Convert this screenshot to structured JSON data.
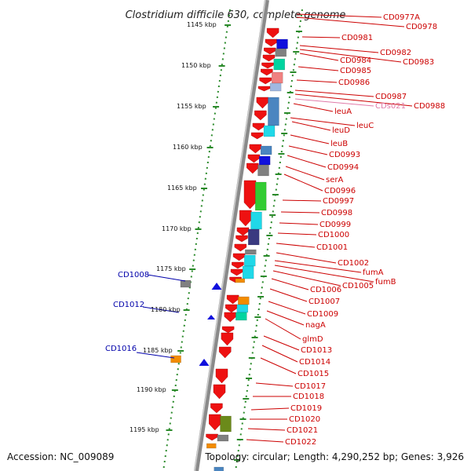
{
  "title": "Clostridium difficile 630, complete genome",
  "footer": {
    "accession": "Accession: NC_009089",
    "summary": "Topology: circular; Length: 4,290,252 bp; Genes: 3,926"
  },
  "colors": {
    "backbone": "#8a8a8a",
    "tick": "#2a8a2a",
    "right_label": "#cc0000",
    "left_label": "#0000aa",
    "pink_label": "#e07aa8",
    "gene_red": "#ee1111",
    "gene_blue": "#1010dd",
    "gene_orange": "#f28c00",
    "gene_steel": "#4a85c0",
    "gene_cyan": "#20d8e8",
    "gene_green": "#33cc33",
    "gene_navy": "#3a3a80",
    "gene_gray": "#808080",
    "gene_olive": "#6b8a1a",
    "gene_teal": "#00d4a0"
  },
  "kbp_ticks": [
    "1145 kbp",
    "1150 kbp",
    "1155 kbp",
    "1160 kbp",
    "1165 kbp",
    "1170 kbp",
    "1175 kbp",
    "1180 kbp",
    "1185 kbp",
    "1190 kbp",
    "1195 kbp"
  ],
  "right_labels": [
    "CD0977A",
    "CD0978",
    "CD0981",
    "CD0982",
    "CD0983",
    "CD0984",
    "CD0985",
    "CD0986",
    "CD0987",
    "CDs021",
    "CD0988",
    "leuA",
    "leuC",
    "leuD",
    "leuB",
    "CD0993",
    "CD0994",
    "serA",
    "CD0996",
    "CD0997",
    "CD0998",
    "CD0999",
    "CD1000",
    "CD1001",
    "CD1002",
    "fumA",
    "fumB",
    "CD1005",
    "CD1006",
    "CD1007",
    "CD1009",
    "nagA",
    "glmD",
    "CD1013",
    "CD1014",
    "CD1015",
    "CD1017",
    "CD1018",
    "CD1019",
    "CD1020",
    "CD1021",
    "CD1022"
  ],
  "left_labels": [
    "CD1008",
    "CD1012",
    "CD1016"
  ]
}
